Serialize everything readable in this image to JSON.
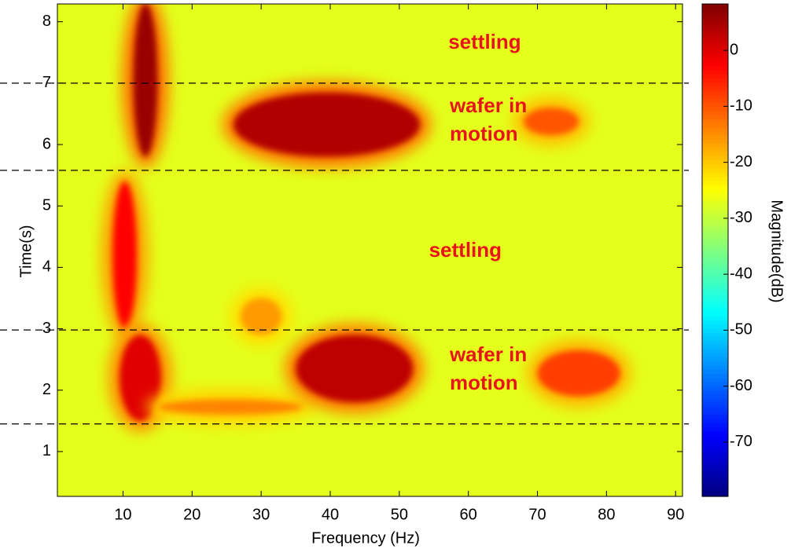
{
  "chart_data": {
    "type": "heatmap",
    "xlabel": "Frequency (Hz)",
    "ylabel": "Time(s)",
    "colorbar_label": "Magnitude(dB)",
    "xlim": [
      0.5,
      91
    ],
    "xticks": [
      10,
      20,
      30,
      40,
      50,
      60,
      70,
      80,
      90
    ],
    "ylim": [
      0.27,
      8.29
    ],
    "yticks": [
      1,
      2,
      3,
      4,
      5,
      6,
      7,
      8
    ],
    "clim": [
      -79.7,
      8.3
    ],
    "cticks": [
      0,
      -10,
      -20,
      -30,
      -40,
      -50,
      -60,
      -70
    ],
    "colormap": "jet",
    "background_magnitude": -27,
    "regions": [
      {
        "freq": [
          11.5,
          15
        ],
        "time": [
          5.8,
          8.3
        ],
        "magnitude": 6
      },
      {
        "freq": [
          8.5,
          12
        ],
        "time": [
          3.0,
          5.4
        ],
        "magnitude": -3
      },
      {
        "freq": [
          9.5,
          15.5
        ],
        "time": [
          1.5,
          2.9
        ],
        "magnitude": 0
      },
      {
        "freq": [
          15,
          36
        ],
        "time": [
          1.6,
          1.85
        ],
        "magnitude": -14
      },
      {
        "freq": [
          35,
          52
        ],
        "time": [
          1.8,
          2.9
        ],
        "magnitude": 3
      },
      {
        "freq": [
          26,
          53
        ],
        "time": [
          5.8,
          6.85
        ],
        "magnitude": 4
      },
      {
        "freq": [
          68,
          76
        ],
        "time": [
          6.15,
          6.6
        ],
        "magnitude": -10
      },
      {
        "freq": [
          70,
          82
        ],
        "time": [
          1.9,
          2.65
        ],
        "magnitude": -8
      },
      {
        "freq": [
          27,
          33
        ],
        "time": [
          2.9,
          3.5
        ],
        "magnitude": -16
      }
    ],
    "phase_boundaries": [
      7.0,
      5.58,
      2.98,
      1.45
    ],
    "annotations": [
      {
        "lines": [
          "settling"
        ],
        "freq": 57.1,
        "time": 7.65
      },
      {
        "lines": [
          "wafer in",
          "motion"
        ],
        "freq": 57.3,
        "time": 6.38
      },
      {
        "lines": [
          "settling"
        ],
        "freq": 54.3,
        "time": 4.26
      },
      {
        "lines": [
          "wafer in",
          "motion"
        ],
        "freq": 57.3,
        "time": 2.33
      }
    ]
  }
}
